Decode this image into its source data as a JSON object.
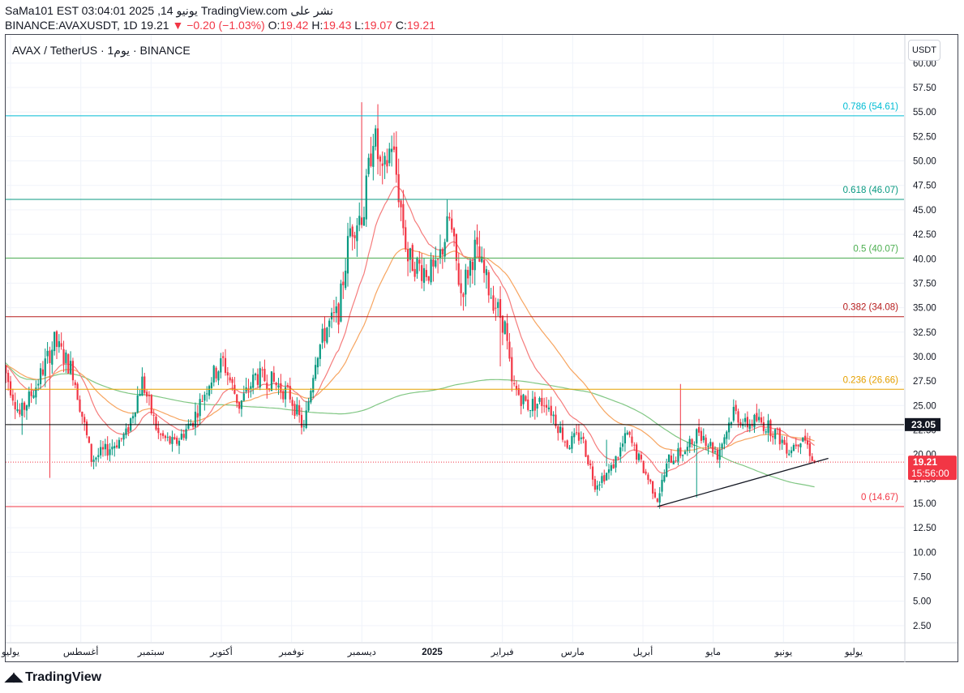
{
  "header": {
    "line1": "SaMa101 EST 03:04:01 2025 ,14 يونيو TradingView.com نشر على",
    "line2_symbol": "BINANCE:AVAXUSDT, 1D 19.21",
    "line2_change": "▼ −0.20 (−1.03%)",
    "line2_o_label": "O:",
    "line2_o": "19.42",
    "line2_h_label": "H:",
    "line2_h": "19.43",
    "line2_l_label": "L:",
    "line2_l": "19.07",
    "line2_c_label": "C:",
    "line2_c": "19.21"
  },
  "symbol_title": "AVAX / TetherUS · 1يوم · BINANCE",
  "currency_button": "USDT",
  "brand": "TradingView",
  "colors": {
    "up": "#089981",
    "down": "#f23645",
    "ema_fast": "#f57c7c",
    "ema_mid": "#f7a560",
    "ema_slow": "#81c784"
  },
  "chart_data": {
    "type": "candlestick",
    "title": "AVAX / TetherUS · 1D · BINANCE",
    "ylim": [
      1.0,
      61.0
    ],
    "y_ticks": [
      "2.50",
      "5.00",
      "7.50",
      "10.00",
      "12.50",
      "15.00",
      "17.50",
      "20.00",
      "22.50",
      "25.00",
      "27.50",
      "30.00",
      "32.50",
      "35.00",
      "37.50",
      "40.00",
      "42.50",
      "45.00",
      "47.50",
      "50.00",
      "52.50",
      "55.00",
      "57.50",
      "60.00"
    ],
    "x_labels": [
      "يوليو",
      "أغسطس",
      "سبتمبر",
      "أكتوبر",
      "نوفمبر",
      "ديسمبر",
      "2025",
      "فبراير",
      "مارس",
      "أبريل",
      "مايو",
      "يونيو",
      "يوليو"
    ],
    "fib_levels": [
      {
        "label": "0.786 (54.61)",
        "value": 54.61,
        "color": "#00bcd4"
      },
      {
        "label": "0.618 (46.07)",
        "value": 46.07,
        "color": "#089981"
      },
      {
        "label": "0.5 (40.07)",
        "value": 40.07,
        "color": "#4caf50"
      },
      {
        "label": "0.382 (34.08)",
        "value": 34.08,
        "color": "#b71c1c"
      },
      {
        "label": "0.236 (26.66)",
        "value": 26.66,
        "color": "#e6a100"
      },
      {
        "label": "0 (14.67)",
        "value": 14.67,
        "color": "#f23645"
      }
    ],
    "horizontal_line": {
      "label": "23.05",
      "value": 23.05,
      "color": "#000000"
    },
    "last_price": {
      "label": "19.21",
      "countdown": "15:56:00",
      "value": 19.21,
      "color": "#f23645"
    },
    "trendline": {
      "from": [
        "2025-04-07",
        14.67
      ],
      "to": [
        "2025-06-20",
        19.6
      ]
    },
    "price_path": [
      [
        "2024-06-28",
        29.0
      ],
      [
        "2024-07-05",
        24.0
      ],
      [
        "2024-07-12",
        27.0
      ],
      [
        "2024-07-20",
        31.5
      ],
      [
        "2024-07-28",
        28.5
      ],
      [
        "2024-08-05",
        19.5
      ],
      [
        "2024-08-12",
        20.5
      ],
      [
        "2024-08-20",
        22.0
      ],
      [
        "2024-08-27",
        27.5
      ],
      [
        "2024-09-03",
        22.0
      ],
      [
        "2024-09-10",
        21.0
      ],
      [
        "2024-09-18",
        23.5
      ],
      [
        "2024-09-25",
        27.5
      ],
      [
        "2024-10-01",
        29.5
      ],
      [
        "2024-10-08",
        25.0
      ],
      [
        "2024-10-15",
        28.0
      ],
      [
        "2024-10-22",
        27.5
      ],
      [
        "2024-10-30",
        26.0
      ],
      [
        "2024-11-05",
        22.5
      ],
      [
        "2024-11-10",
        30.0
      ],
      [
        "2024-11-15",
        33.0
      ],
      [
        "2024-11-20",
        34.5
      ],
      [
        "2024-11-25",
        43.0
      ],
      [
        "2024-12-01",
        45.0
      ],
      [
        "2024-12-05",
        53.0
      ],
      [
        "2024-12-09",
        48.0
      ],
      [
        "2024-12-13",
        52.0
      ],
      [
        "2024-12-20",
        40.0
      ],
      [
        "2024-12-26",
        39.0
      ],
      [
        "2025-01-01",
        38.5
      ],
      [
        "2025-01-07",
        44.0
      ],
      [
        "2025-01-12",
        36.5
      ],
      [
        "2025-01-18",
        41.0
      ],
      [
        "2025-01-24",
        37.0
      ],
      [
        "2025-01-31",
        33.0
      ],
      [
        "2025-02-03",
        27.0
      ],
      [
        "2025-02-10",
        25.0
      ],
      [
        "2025-02-18",
        25.5
      ],
      [
        "2025-02-27",
        21.0
      ],
      [
        "2025-03-05",
        22.0
      ],
      [
        "2025-03-11",
        17.0
      ],
      [
        "2025-03-18",
        18.5
      ],
      [
        "2025-03-25",
        22.0
      ],
      [
        "2025-03-31",
        19.0
      ],
      [
        "2025-04-07",
        15.5
      ],
      [
        "2025-04-12",
        19.5
      ],
      [
        "2025-04-20",
        20.5
      ],
      [
        "2025-04-25",
        22.5
      ],
      [
        "2025-05-03",
        20.0
      ],
      [
        "2025-05-10",
        24.5
      ],
      [
        "2025-05-15",
        23.0
      ],
      [
        "2025-05-20",
        23.5
      ],
      [
        "2025-05-27",
        22.5
      ],
      [
        "2025-06-03",
        20.5
      ],
      [
        "2025-06-09",
        22.0
      ],
      [
        "2025-06-14",
        19.21
      ]
    ]
  }
}
